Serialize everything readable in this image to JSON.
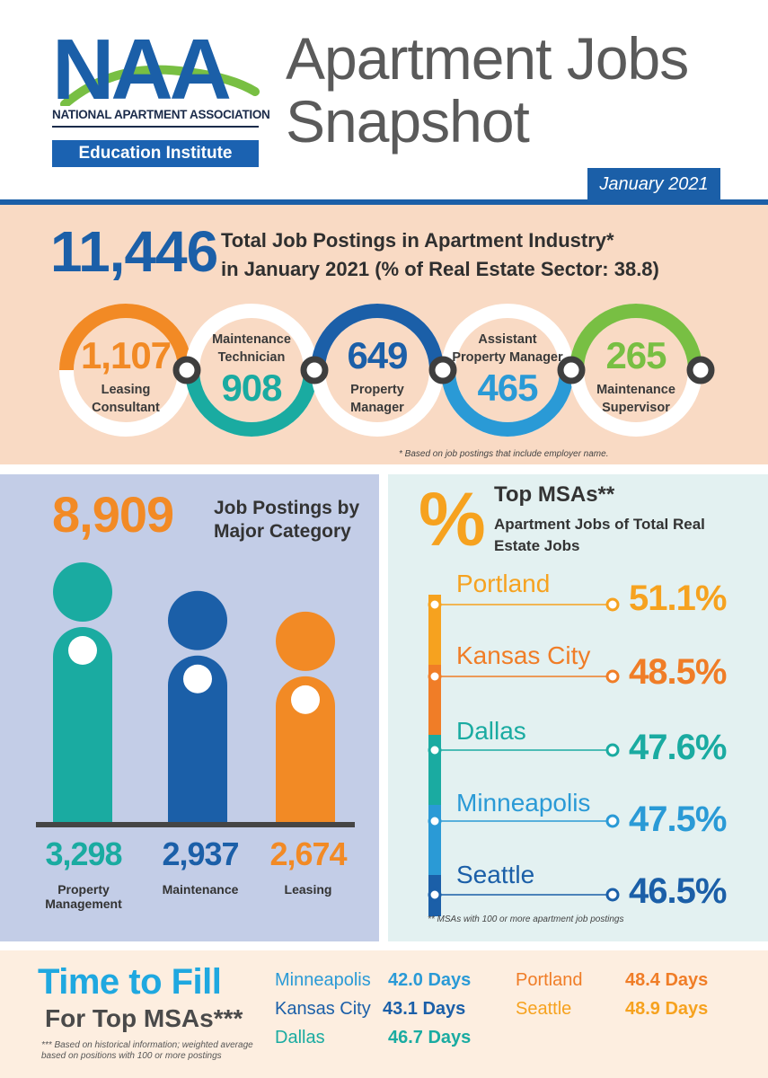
{
  "header": {
    "logo_letters": "NAA",
    "logo_association": "NATIONAL APARTMENT ASSOCIATION",
    "logo_institute": "Education Institute",
    "title_line1": "Apartment Jobs",
    "title_line2": "Snapshot",
    "date": "January 2021"
  },
  "total": {
    "value": "11,446",
    "line1": "Total Job Postings in Apartment Industry*",
    "line2": "in January 2021 (% of Real Estate Sector: 38.8)",
    "footnote": "* Based on job postings that include employer name."
  },
  "roles": [
    {
      "value": "1,107",
      "label1": "Leasing",
      "label2": "Consultant",
      "color": "#f28a25"
    },
    {
      "value": "908",
      "label1": "Maintenance",
      "label2": "Technician",
      "color": "#1aaba1"
    },
    {
      "value": "649",
      "label1": "Property",
      "label2": "Manager",
      "color": "#1b5fa8"
    },
    {
      "value": "465",
      "label1": "Assistant",
      "label2": "Property Manager",
      "color": "#2a9ad6"
    },
    {
      "value": "265",
      "label1": "Maintenance",
      "label2": "Supervisor",
      "color": "#78bf43"
    }
  ],
  "major": {
    "value": "8,909",
    "title1": "Job Postings by",
    "title2": "Major Category"
  },
  "chart_data": {
    "type": "bar",
    "categories": [
      "Property Management",
      "Maintenance",
      "Leasing"
    ],
    "values": [
      3298,
      2937,
      2674
    ],
    "value_labels": [
      "3,298",
      "2,937",
      "2,674"
    ],
    "label_lines": [
      [
        "Property",
        "Management"
      ],
      [
        "Maintenance"
      ],
      [
        "Leasing"
      ]
    ],
    "colors": [
      "#1aaba1",
      "#1b5fa8",
      "#f28a25"
    ]
  },
  "msa": {
    "symbol": "%",
    "title": "Top MSAs**",
    "subtitle1": "Apartment Jobs of Total Real",
    "subtitle2": "Estate Jobs",
    "footnote": "** MSAs with 100 or more apartment job postings",
    "items": [
      {
        "city": "Portland",
        "pct": "51.1%",
        "color": "#f6a21f"
      },
      {
        "city": "Kansas City",
        "pct": "48.5%",
        "color": "#f07d27"
      },
      {
        "city": "Dallas",
        "pct": "47.6%",
        "color": "#1aaba1"
      },
      {
        "city": "Minneapolis",
        "pct": "47.5%",
        "color": "#2a9ad6"
      },
      {
        "city": "Seattle",
        "pct": "46.5%",
        "color": "#1b5fa8"
      }
    ]
  },
  "time_to_fill": {
    "title": "Time to Fill",
    "subtitle": "For Top MSAs***",
    "note": "*** Based on historical information; weighted average based on positions with 100 or more postings",
    "items": [
      {
        "city": "Minneapolis",
        "days": "42.0 Days",
        "color": "#2a9ad6"
      },
      {
        "city": "Kansas City",
        "days": "43.1 Days",
        "color": "#1b5fa8"
      },
      {
        "city": "Dallas",
        "days": "46.7 Days",
        "color": "#1aaba1"
      },
      {
        "city": "Portland",
        "days": "48.4 Days",
        "color": "#f07d27"
      },
      {
        "city": "Seattle",
        "days": "48.9 Days",
        "color": "#f6a21f"
      }
    ]
  }
}
